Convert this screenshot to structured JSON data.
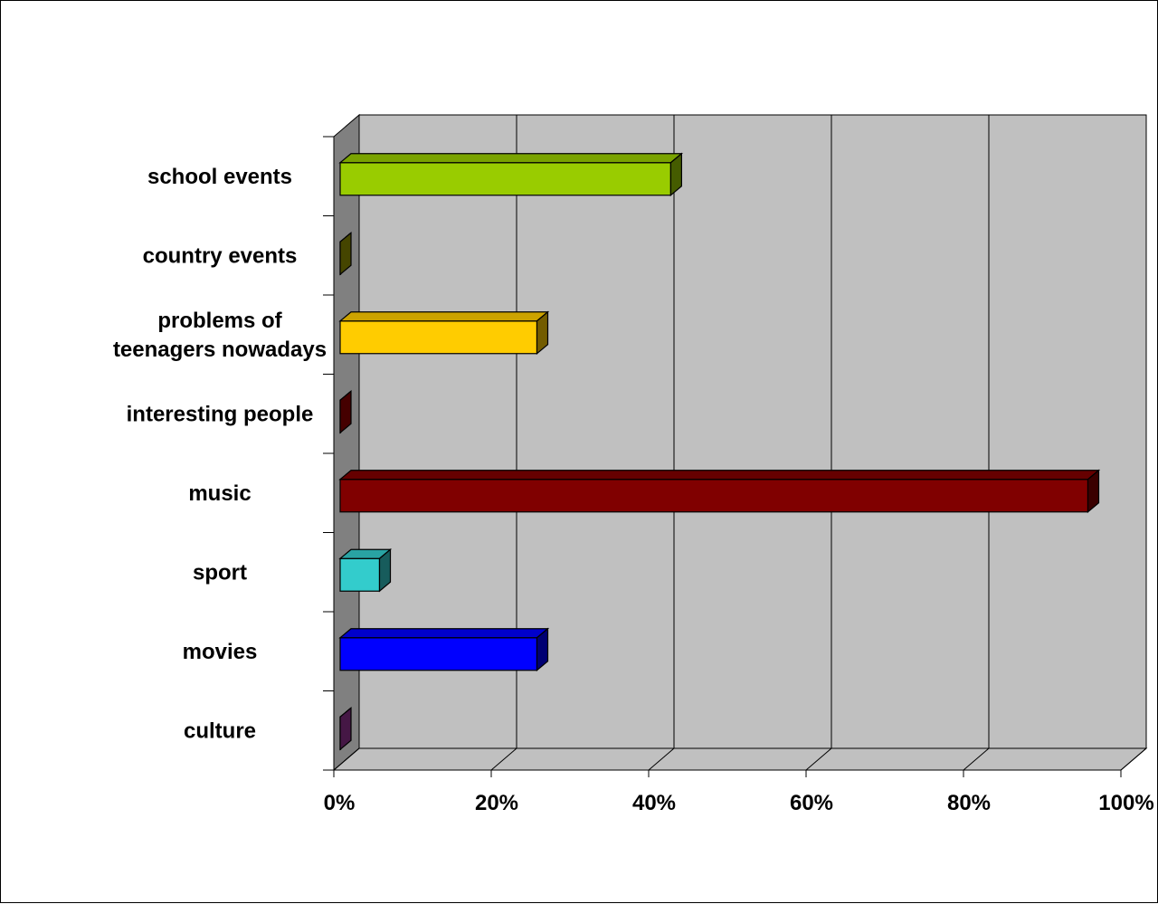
{
  "chart_data": {
    "type": "bar",
    "orientation": "horizontal",
    "style": "3d",
    "title": "",
    "xlabel": "",
    "ylabel": "",
    "xlim": [
      0,
      100
    ],
    "grid": true,
    "legend": "none",
    "categories": [
      "school events",
      "country events",
      "problems of teenagers nowadays",
      "interesting people",
      "music",
      "sport",
      "movies",
      "culture"
    ],
    "category_lines": [
      [
        "school events"
      ],
      [
        "country events"
      ],
      [
        "problems of",
        "teenagers nowadays"
      ],
      [
        "interesting people"
      ],
      [
        "music"
      ],
      [
        "sport"
      ],
      [
        "movies"
      ],
      [
        "culture"
      ]
    ],
    "values": [
      42,
      0,
      25,
      0,
      95,
      5,
      25,
      0
    ],
    "colors": [
      "#99CC00",
      "#999900",
      "#FFCC00",
      "#990000",
      "#800000",
      "#33CCCC",
      "#0000FF",
      "#993399"
    ],
    "ticks": [
      "0%",
      "20%",
      "40%",
      "60%",
      "80%",
      "100%"
    ],
    "plot_background": "#C0C0C0",
    "side_wall_color": "#808080"
  }
}
